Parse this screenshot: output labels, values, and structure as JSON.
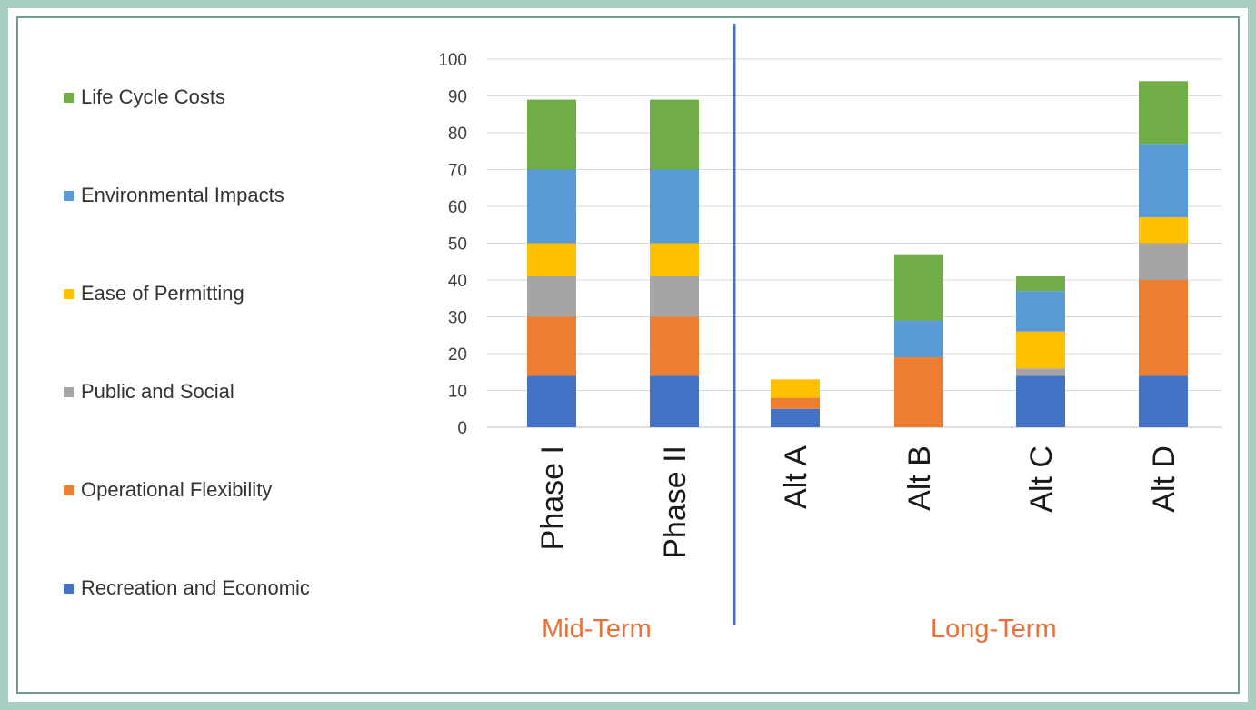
{
  "chart_data": {
    "type": "bar",
    "stacked": true,
    "categories": [
      "Phase I",
      "Phase II",
      "Alt A",
      "Alt B",
      "Alt C",
      "Alt D"
    ],
    "groups": [
      {
        "label": "Mid-Term",
        "categories": [
          "Phase I",
          "Phase II"
        ]
      },
      {
        "label": "Long-Term",
        "categories": [
          "Alt A",
          "Alt B",
          "Alt C",
          "Alt D"
        ]
      }
    ],
    "series": [
      {
        "name": "Recreation and Economic",
        "color": "#4472c4",
        "values": [
          14,
          14,
          5,
          0,
          14,
          14
        ]
      },
      {
        "name": "Operational Flexibility",
        "color": "#ed7d31",
        "values": [
          16,
          16,
          3,
          19,
          0,
          26
        ]
      },
      {
        "name": "Public and Social",
        "color": "#a5a5a5",
        "values": [
          11,
          11,
          0,
          0,
          2,
          10
        ]
      },
      {
        "name": "Ease of Permitting",
        "color": "#ffc000",
        "values": [
          9,
          9,
          5,
          0,
          10,
          7
        ]
      },
      {
        "name": "Environmental Impacts",
        "color": "#5b9bd5",
        "values": [
          20,
          20,
          0,
          10,
          11,
          20
        ]
      },
      {
        "name": "Life Cycle Costs",
        "color": "#70ad47",
        "values": [
          19,
          19,
          0,
          18,
          4,
          17
        ]
      }
    ],
    "ylim": [
      0,
      100
    ],
    "yticks": [
      0,
      10,
      20,
      30,
      40,
      50,
      60,
      70,
      80,
      90,
      100
    ],
    "grid": true,
    "legend_position": "left",
    "divider_color": "#4472c4"
  },
  "legend_order": [
    "Life Cycle Costs",
    "Environmental Impacts",
    "Ease of Permitting",
    "Public and Social",
    "Operational Flexibility",
    "Recreation and Economic"
  ]
}
